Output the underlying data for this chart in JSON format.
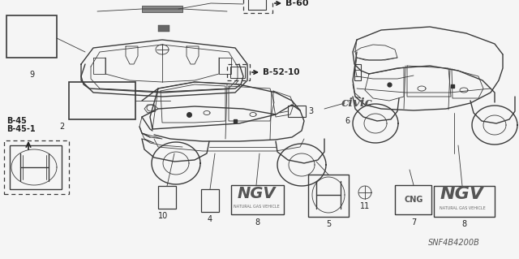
{
  "bg": "#f5f5f5",
  "line_color": "#3a3a3a",
  "dark_color": "#222222",
  "image_code": "SNF4B4200B",
  "b60_label": "B-60",
  "b5210_label": "B-52-10",
  "b45_label": "B-45",
  "b451_label": "B-45-1",
  "civic_text": "civic",
  "ngv_text": "NGV",
  "ngv_sub": "NATURAL GAS VEHICLE",
  "cng_text": "CNG",
  "part_nums": [
    "2",
    "3",
    "4",
    "5",
    "6",
    "7",
    "8",
    "8",
    "9",
    "10",
    "11"
  ]
}
